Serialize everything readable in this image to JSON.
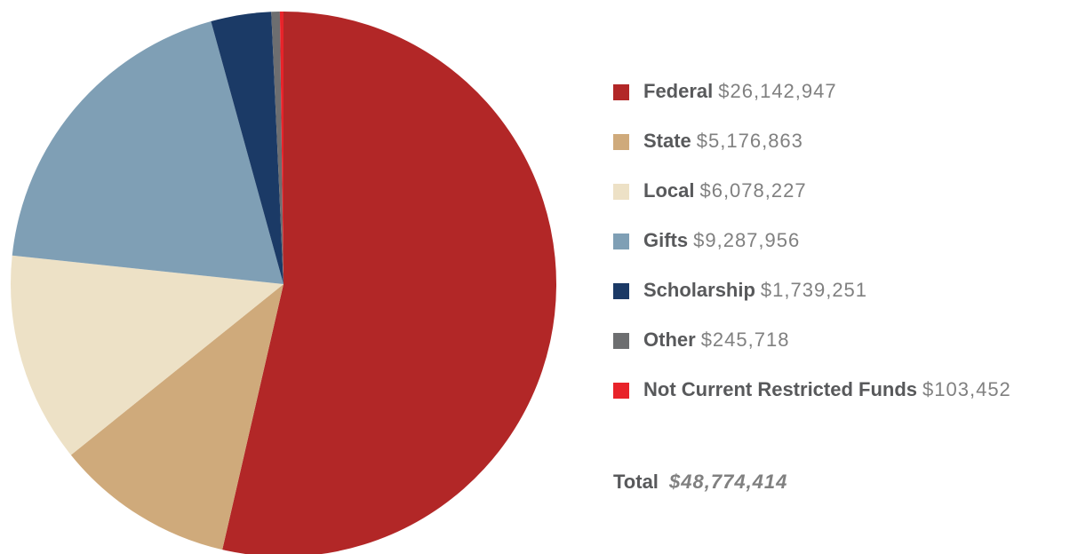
{
  "chart_data": {
    "type": "pie",
    "categories": [
      "Federal",
      "State",
      "Local",
      "Gifts",
      "Scholarship",
      "Other",
      "Not Current Restricted Funds"
    ],
    "values": [
      26142947,
      5176863,
      6078227,
      9287956,
      1739251,
      245718,
      103452
    ],
    "value_labels": [
      "$26,142,947",
      "$5,176,863",
      "$6,078,227",
      "$9,287,956",
      "$1,739,251",
      "$245,718",
      "$103,452"
    ],
    "colors": [
      "#b22727",
      "#cfaa7b",
      "#ede1c6",
      "#7f9fb5",
      "#1b3a66",
      "#6d6e70",
      "#e8232a"
    ],
    "total_title": "Total",
    "total": "$48,774,414",
    "legend": "right"
  }
}
